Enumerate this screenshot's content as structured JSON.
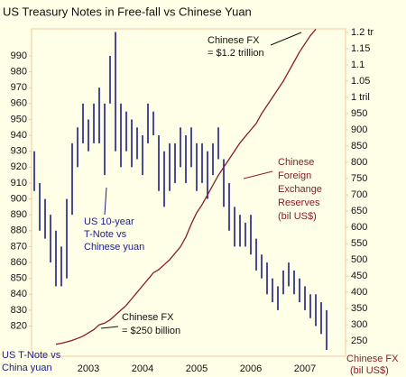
{
  "chart_data": {
    "type": "bar-line",
    "title": "US Treasury Notes in Free-fall vs Chinese Yuan",
    "categories": [
      null,
      null,
      null,
      null,
      null,
      null,
      null,
      null,
      null,
      null,
      2003,
      null,
      null,
      null,
      null,
      null,
      null,
      null,
      null,
      null,
      2004,
      null,
      null,
      null,
      null,
      null,
      null,
      null,
      null,
      null,
      2005,
      null,
      null,
      null,
      null,
      null,
      null,
      null,
      null,
      null,
      2006,
      null,
      null,
      null,
      null,
      null,
      null,
      null,
      null,
      null,
      2007,
      null,
      null,
      null,
      null,
      null,
      null
    ],
    "ylim": [
      801,
      1007
    ],
    "yticks": [
      820,
      830,
      840,
      850,
      860,
      870,
      880,
      890,
      900,
      910,
      920,
      930,
      940,
      950,
      960,
      970,
      980,
      990
    ],
    "y2lim": [
      203,
      1211
    ],
    "y2ticks": [
      250,
      300,
      350,
      400,
      450,
      500,
      550,
      600,
      650,
      700,
      750,
      800,
      850,
      900,
      950,
      {
        "value": 1000,
        "label": "1 tril"
      },
      {
        "value": 1050,
        "label": "1.05"
      },
      {
        "value": 1100,
        "label": "1.1"
      },
      {
        "value": 1150,
        "label": "1.15"
      },
      {
        "value": 1200,
        "label": "1.2 tr"
      }
    ],
    "series": [
      {
        "color": "#1c1c8a",
        "high": [
          930,
          910,
          900,
          890,
          880,
          870,
          900,
          935,
          945,
          960,
          950,
          960,
          970,
          960,
          990,
          1005,
          960,
          955,
          950,
          945,
          940,
          960,
          955,
          940,
          930,
          935,
          935,
          945,
          940,
          945,
          935,
          935,
          930,
          935,
          945,
          925,
          910,
          895,
          890,
          885,
          890,
          875,
          865,
          860,
          850,
          845,
          855,
          860,
          855,
          850,
          845,
          840,
          840,
          835,
          830,
          null,
          null
        ],
        "low": [
          905,
          880,
          875,
          860,
          845,
          845,
          850,
          890,
          920,
          935,
          930,
          935,
          935,
          915,
          960,
          930,
          920,
          930,
          920,
          925,
          915,
          935,
          940,
          905,
          895,
          905,
          910,
          920,
          910,
          920,
          905,
          910,
          900,
          915,
          925,
          895,
          880,
          870,
          870,
          870,
          865,
          855,
          850,
          840,
          835,
          830,
          840,
          845,
          840,
          835,
          830,
          825,
          820,
          815,
          805,
          null,
          null
        ]
      },
      {
        "color": "#8b1a2e",
        "axis": "y2",
        "values": [
          null,
          null,
          null,
          null,
          240,
          243,
          247,
          252,
          258,
          265,
          275,
          285,
          300,
          305,
          315,
          330,
          345,
          360,
          380,
          400,
          420,
          440,
          460,
          470,
          485,
          500,
          520,
          540,
          570,
          610,
          645,
          670,
          700,
          730,
          760,
          785,
          810,
          835,
          860,
          880,
          900,
          920,
          950,
          975,
          1000,
          1025,
          1050,
          1080,
          1110,
          1140,
          1165,
          1190,
          1210,
          null,
          null,
          null,
          null
        ]
      }
    ],
    "annotations": {
      "fx_high": [
        "Chinese FX",
        "= $1.2 trillion"
      ],
      "bond_note": [
        "US 10-year",
        "T-Note vs",
        "Chinese yuan"
      ],
      "reserves": [
        "Chinese",
        "Foreign",
        "Exchange",
        "Reserves",
        "(bil US$)"
      ],
      "fx_low": [
        "Chinese FX",
        "= $250 billion"
      ],
      "left_axis": [
        "US T-Note vs",
        "China yuan"
      ],
      "right_axis": [
        "Chinese FX",
        "(bil US$)"
      ]
    }
  }
}
